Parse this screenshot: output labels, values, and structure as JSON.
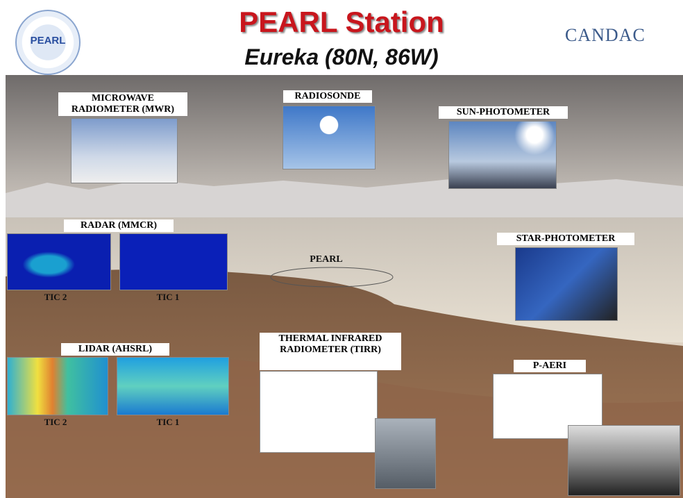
{
  "header": {
    "title": "PEARL Station",
    "subtitle": "Eureka  (80N, 86W)",
    "logo_text": "PEARL",
    "partner": "CANDAC"
  },
  "panels": [
    {
      "label": "MICROWAVE RADIOMETER (MWR)"
    },
    {
      "label": "RADIOSONDE"
    },
    {
      "label": "SUN-PHOTOMETER"
    },
    {
      "label": "RADAR (MMCR)",
      "sublabels": [
        "TIC 2",
        "TIC 1"
      ]
    },
    {
      "label": "PEARL"
    },
    {
      "label": "STAR-PHOTOMETER"
    },
    {
      "label": "LIDAR (AHSRL)",
      "sublabels": [
        "TIC 2",
        "TIC 1"
      ]
    },
    {
      "label": "THERMAL INFRARED RADIOMETER (TIRR)"
    },
    {
      "label": "P-AERI"
    }
  ]
}
